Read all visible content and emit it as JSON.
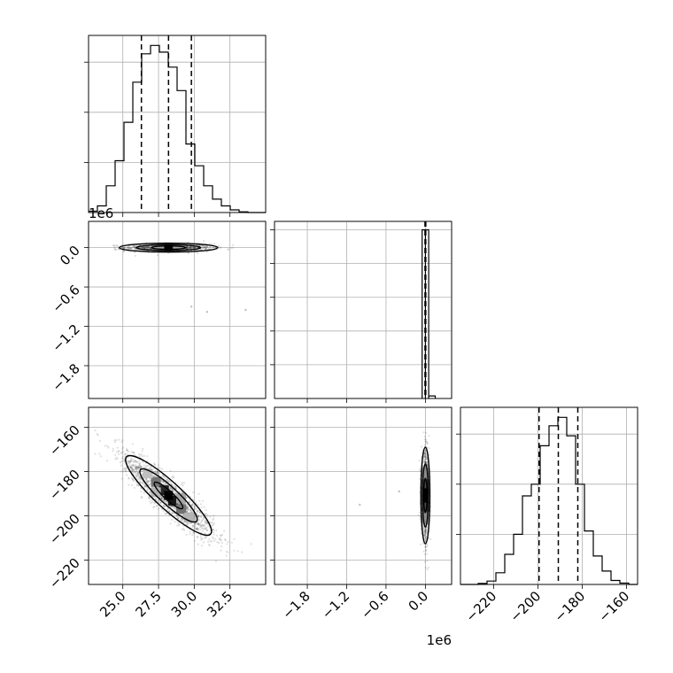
{
  "chart_data": {
    "type": "corner",
    "grid": true,
    "offset_labels": {
      "row1_y": "1e6",
      "col1_x": "1e6"
    },
    "histograms": [
      {
        "id": "hist-param0",
        "x_range": [
          22.6,
          35.0
        ],
        "bin_edges": [
          22.6,
          23.22,
          23.84,
          24.46,
          25.08,
          25.7,
          26.32,
          26.94,
          27.56,
          28.18,
          28.8,
          29.42,
          30.04,
          30.66,
          31.28,
          31.9,
          32.52,
          33.14,
          33.76,
          34.38,
          35.0
        ],
        "counts": [
          0.04,
          0.2,
          0.8,
          1.55,
          2.7,
          3.9,
          4.75,
          5.0,
          4.8,
          4.35,
          3.65,
          2.05,
          1.4,
          0.8,
          0.4,
          0.2,
          0.08,
          0.02,
          0.0,
          0.0
        ],
        "quantiles": [
          26.3,
          28.2,
          29.8
        ],
        "ylim": [
          0,
          5.3
        ],
        "ytick_values": [
          1.5,
          3.0,
          4.5
        ]
      },
      {
        "id": "hist-param1",
        "x_range": [
          -2300000,
          400000
        ],
        "bars": [
          {
            "x0": -50000,
            "x1": 0,
            "count": 1.0
          },
          {
            "x0": 0,
            "x1": 50000,
            "count": 1.0
          },
          {
            "x0": 50000,
            "x1": 150000,
            "count": 0.015
          }
        ],
        "quantiles": [
          -8000,
          0,
          8000
        ],
        "ylim": [
          0,
          1.05
        ],
        "ytick_values": [
          0.2,
          0.4,
          0.6,
          0.8,
          1.0
        ]
      },
      {
        "id": "hist-param2",
        "x_range": [
          -235.0,
          -155.0
        ],
        "bin_edges": [
          -235.0,
          -231.0,
          -227.0,
          -223.0,
          -219.0,
          -215.0,
          -211.0,
          -207.0,
          -203.0,
          -199.0,
          -195.0,
          -191.0,
          -187.0,
          -183.0,
          -179.0,
          -175.0,
          -171.0,
          -167.0,
          -163.0,
          -159.0,
          -155.0
        ],
        "counts": [
          0.0,
          0.0,
          0.03,
          0.1,
          0.35,
          0.9,
          1.5,
          2.65,
          3.0,
          4.15,
          4.75,
          5.0,
          4.45,
          3.0,
          1.6,
          0.85,
          0.4,
          0.12,
          0.04,
          0.0
        ],
        "quantiles": [
          -199.5,
          -190.8,
          -182.0
        ],
        "ylim": [
          0,
          5.3
        ],
        "ytick_values": [
          1.5,
          3.0,
          4.5
        ]
      }
    ],
    "scatter_panels": [
      {
        "id": "p0-vs-p1",
        "x_range": [
          22.6,
          35.0
        ],
        "y_range": [
          -2300000,
          400000
        ],
        "center": [
          28.2,
          0
        ],
        "spread": [
          1.5,
          30000
        ],
        "outliers": [
          [
            29.8,
            -900000
          ],
          [
            30.9,
            -980000
          ],
          [
            33.6,
            -950000
          ]
        ],
        "yticks": [
          0,
          -600000,
          -1200000,
          -1800000
        ],
        "ytick_labels": [
          "0.0",
          "−0.6",
          "−1.2",
          "−1.8"
        ]
      },
      {
        "id": "p0-vs-p2",
        "x_range": [
          22.6,
          35.0
        ],
        "y_range": [
          -231.0,
          -151.0
        ],
        "center": [
          28.2,
          -190.8
        ],
        "spread": [
          1.6,
          9.5
        ],
        "correlation": -0.9,
        "xticks": [
          25.0,
          27.5,
          30.0,
          32.5
        ],
        "xtick_labels": [
          "25.0",
          "27.5",
          "30.0",
          "32.5"
        ],
        "yticks": [
          -160,
          -180,
          -200,
          -220
        ],
        "ytick_labels": [
          "−160",
          "−180",
          "−200",
          "−220"
        ]
      },
      {
        "id": "p1-vs-p2",
        "x_range": [
          -2300000,
          400000
        ],
        "y_range": [
          -231.0,
          -151.0
        ],
        "center": [
          0,
          -190.8
        ],
        "spread": [
          30000,
          9.5
        ],
        "outliers": [
          [
            -1000000,
            -195.0
          ],
          [
            -400000,
            -189.0
          ]
        ],
        "xticks": [
          -1800000,
          -1200000,
          -600000,
          0
        ],
        "xtick_labels": [
          "−1.8",
          "−1.2",
          "−0.6",
          "0.0"
        ]
      }
    ],
    "bottom_right_xticks": [
      -220,
      -200,
      -180,
      -160
    ],
    "bottom_right_xtick_labels": [
      "−220",
      "−200",
      "−180",
      "−160"
    ]
  }
}
